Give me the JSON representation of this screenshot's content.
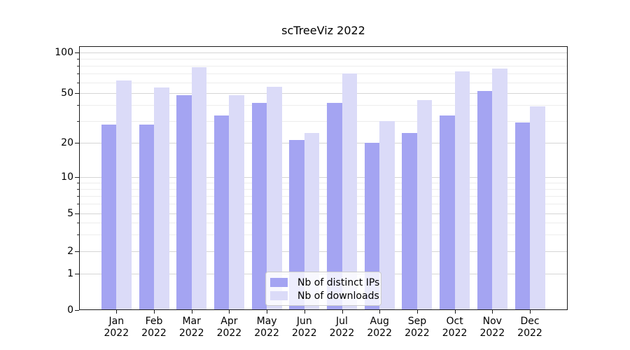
{
  "chart_data": {
    "type": "bar",
    "title": "scTreeViz 2022",
    "categories": [
      "Jan",
      "Feb",
      "Mar",
      "Apr",
      "May",
      "Jun",
      "Jul",
      "Aug",
      "Sep",
      "Oct",
      "Nov",
      "Dec"
    ],
    "category_year": "2022",
    "series": [
      {
        "name": "Nb of distinct IPs",
        "color": "#a4a4f2",
        "values": [
          28,
          28,
          48,
          33,
          42,
          21,
          42,
          20,
          24,
          33,
          52,
          29
        ]
      },
      {
        "name": "Nb of downloads",
        "color": "#dbdbf8",
        "values": [
          62,
          55,
          78,
          48,
          56,
          24,
          70,
          30,
          44,
          72,
          76,
          39
        ]
      }
    ],
    "yscale": "symlog",
    "ylim": [
      0,
      110
    ],
    "yticks": [
      0,
      1,
      2,
      5,
      10,
      20,
      50,
      100
    ],
    "minor_yticks": [
      3,
      4,
      6,
      7,
      8,
      9,
      30,
      40,
      60,
      70,
      80,
      90
    ],
    "xlabel": "",
    "ylabel": "",
    "grid": true,
    "legend_position": "lower center"
  }
}
